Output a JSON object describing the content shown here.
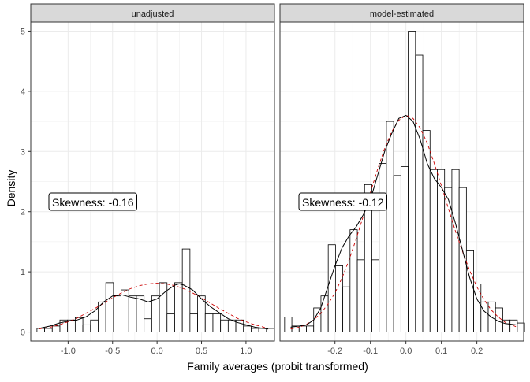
{
  "chart_data": {
    "type": "histogram",
    "ylabel": "Density",
    "xlabel": "Family averages (probit transformed)",
    "y_ticks": [
      0,
      1,
      2,
      3,
      4,
      5
    ],
    "ylim": [
      -0.15,
      5.15
    ],
    "colors": {
      "bars_fill": "#ffffff",
      "bars_stroke": "#000000",
      "density_line": "#000000",
      "normal_curve": "#cc0000",
      "strip_fill": "#d9d9d9",
      "grid": "#ebebeb"
    },
    "panels": [
      {
        "strip_label": "unadjusted",
        "xlim": [
          -1.42,
          1.32
        ],
        "x_ticks": [
          -1.0,
          -0.5,
          0.0,
          0.5,
          1.0
        ],
        "x_tick_labels": [
          "-1.0",
          "-0.5",
          "0.0",
          "0.5",
          "1.0"
        ],
        "annotation": "Skewness: -0.16",
        "bin_start": -1.35,
        "bin_width": 0.086,
        "values": [
          0.06,
          0.06,
          0.1,
          0.2,
          0.2,
          0.24,
          0.12,
          0.2,
          0.5,
          0.82,
          0.6,
          0.7,
          0.6,
          0.6,
          0.22,
          0.6,
          0.82,
          0.3,
          0.82,
          1.38,
          0.3,
          0.6,
          0.3,
          0.3,
          0.2,
          0.2,
          0.2,
          0.1,
          0.06,
          0.06,
          0.06
        ],
        "density_x": [
          -1.33,
          -1.2,
          -1.1,
          -1.0,
          -0.9,
          -0.8,
          -0.7,
          -0.6,
          -0.5,
          -0.4,
          -0.3,
          -0.2,
          -0.1,
          0.0,
          0.1,
          0.2,
          0.25,
          0.3,
          0.4,
          0.5,
          0.6,
          0.7,
          0.8,
          0.9,
          1.0,
          1.1,
          1.2,
          1.25
        ],
        "density_y": [
          0.06,
          0.1,
          0.15,
          0.18,
          0.2,
          0.25,
          0.35,
          0.5,
          0.6,
          0.62,
          0.58,
          0.55,
          0.5,
          0.55,
          0.68,
          0.78,
          0.8,
          0.78,
          0.7,
          0.55,
          0.42,
          0.32,
          0.22,
          0.16,
          0.12,
          0.08,
          0.06,
          0.05
        ],
        "normal_x": [
          -1.33,
          -1.2,
          -1.1,
          -1.0,
          -0.9,
          -0.8,
          -0.7,
          -0.6,
          -0.5,
          -0.4,
          -0.3,
          -0.2,
          -0.1,
          0.0,
          0.1,
          0.2,
          0.3,
          0.4,
          0.5,
          0.6,
          0.7,
          0.8,
          0.9,
          1.0,
          1.1,
          1.2,
          1.25
        ],
        "normal_y": [
          0.05,
          0.08,
          0.12,
          0.17,
          0.23,
          0.31,
          0.39,
          0.48,
          0.57,
          0.65,
          0.72,
          0.77,
          0.8,
          0.81,
          0.8,
          0.77,
          0.72,
          0.65,
          0.57,
          0.48,
          0.39,
          0.31,
          0.23,
          0.17,
          0.12,
          0.08,
          0.06
        ]
      },
      {
        "strip_label": "model-estimated",
        "xlim": [
          -0.355,
          0.332
        ],
        "x_ticks": [
          -0.2,
          -0.1,
          0.0,
          0.1,
          0.2
        ],
        "x_tick_labels": [
          "-0.2",
          "-0.1",
          "0.0",
          "0.1",
          "0.2"
        ],
        "annotation": "Skewness: -0.12",
        "bin_start": -0.342,
        "bin_width": 0.0205,
        "values": [
          0.25,
          0.1,
          0.1,
          0.1,
          0.4,
          0.6,
          1.45,
          1.1,
          0.75,
          1.7,
          1.2,
          2.45,
          1.2,
          2.8,
          3.5,
          2.6,
          2.75,
          5.0,
          4.6,
          3.35,
          2.7,
          2.7,
          2.4,
          2.7,
          2.4,
          1.35,
          0.8,
          0.5,
          0.5,
          0.4,
          0.2,
          0.2,
          0.15
        ],
        "density_x": [
          -0.325,
          -0.3,
          -0.28,
          -0.26,
          -0.24,
          -0.22,
          -0.2,
          -0.18,
          -0.16,
          -0.14,
          -0.12,
          -0.1,
          -0.08,
          -0.06,
          -0.04,
          -0.02,
          0.0,
          0.02,
          0.04,
          0.06,
          0.08,
          0.1,
          0.12,
          0.14,
          0.16,
          0.18,
          0.2,
          0.22,
          0.24,
          0.26,
          0.28,
          0.31
        ],
        "density_y": [
          0.08,
          0.1,
          0.12,
          0.2,
          0.4,
          0.75,
          1.1,
          1.4,
          1.6,
          1.75,
          1.95,
          2.2,
          2.6,
          3.0,
          3.3,
          3.55,
          3.6,
          3.5,
          3.2,
          2.8,
          2.55,
          2.4,
          2.2,
          1.8,
          1.35,
          0.9,
          0.55,
          0.35,
          0.25,
          0.18,
          0.14,
          0.12
        ],
        "normal_x": [
          -0.325,
          -0.3,
          -0.28,
          -0.26,
          -0.24,
          -0.22,
          -0.2,
          -0.18,
          -0.16,
          -0.14,
          -0.12,
          -0.1,
          -0.08,
          -0.06,
          -0.04,
          -0.02,
          0.0,
          0.02,
          0.04,
          0.06,
          0.08,
          0.1,
          0.12,
          0.14,
          0.16,
          0.18,
          0.2,
          0.22,
          0.24,
          0.26,
          0.28,
          0.31
        ],
        "normal_y": [
          0.05,
          0.08,
          0.13,
          0.2,
          0.31,
          0.46,
          0.65,
          0.9,
          1.2,
          1.55,
          1.93,
          2.32,
          2.7,
          3.05,
          3.33,
          3.52,
          3.6,
          3.55,
          3.39,
          3.14,
          2.8,
          2.43,
          2.05,
          1.67,
          1.33,
          1.02,
          0.75,
          0.54,
          0.37,
          0.25,
          0.16,
          0.09
        ]
      }
    ]
  }
}
